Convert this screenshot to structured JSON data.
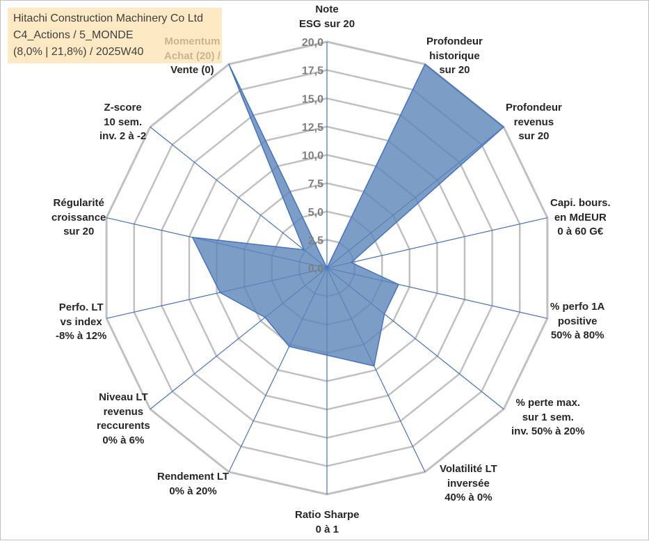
{
  "header": {
    "company": "Hitachi Construction Machinery Co Ltd",
    "portfolio": "C4_Actions / 5_MONDE",
    "stats": "(8,0% | 21,8%) / 2025W40"
  },
  "chart_data": {
    "type": "radar",
    "scale_min": 0,
    "scale_max": 20,
    "scale_step": 2.5,
    "tick_labels": [
      "0,0",
      "2,5",
      "5,0",
      "7,5",
      "10,0",
      "12,5",
      "15,0",
      "17,5",
      "20,0"
    ],
    "axes": [
      {
        "label": [
          "Note",
          "ESG sur 20"
        ],
        "value": 0
      },
      {
        "label": [
          "Profondeur",
          "historique",
          "sur 20"
        ],
        "value": 20
      },
      {
        "label": [
          "Profondeur",
          "revenus",
          "sur 20"
        ],
        "value": 20
      },
      {
        "label": [
          "Capi. bours.",
          "en MdEUR",
          "0 à 60 G€"
        ],
        "value": 2.2
      },
      {
        "label": [
          "% perfo 1A",
          "positive",
          "50% à 80%"
        ],
        "value": 6.5
      },
      {
        "label": [
          "% perte max.",
          "sur 1 sem.",
          "inv. 50% à 20%"
        ],
        "value": 6.5
      },
      {
        "label": [
          "Volatilité LT",
          "inversée",
          "40% à 0%"
        ],
        "value": 9.6
      },
      {
        "label": [
          "Ratio Sharpe",
          "0 à 1"
        ],
        "value": 7.7
      },
      {
        "label": [
          "Rendement LT",
          "0% à 20%"
        ],
        "value": 7.7
      },
      {
        "label": [
          "Niveau LT",
          "revenus",
          "reccurents",
          "0% à 6%"
        ],
        "value": 7.0
      },
      {
        "label": [
          "Perfo. LT",
          "vs index",
          "-8% à 12%"
        ],
        "value": 9.7
      },
      {
        "label": [
          "Régularité",
          "croissance",
          "sur 20"
        ],
        "value": 12.2
      },
      {
        "label": [
          "Z-score",
          "10 sem.",
          "inv. 2 à -2"
        ],
        "value": 2.6
      },
      {
        "label": [
          "Momentum",
          "Achat (20) /",
          "Vente (0)"
        ],
        "value": 20
      }
    ],
    "colors": {
      "fill": "#5b84b8",
      "fill_opacity": 0.8,
      "series_line": "#4472c4",
      "spoke": "#4472c4",
      "grid": "#c0c0c0",
      "tick_text": "#7f7f7f",
      "label_text": "#262626",
      "info_box_bg": "#fde9c4"
    }
  }
}
